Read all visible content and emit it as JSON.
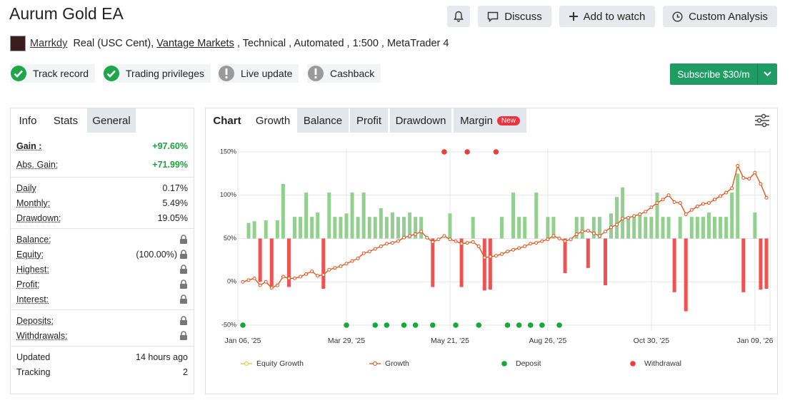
{
  "header": {
    "title": "Aurum Gold EA",
    "buttons": [
      "Discuss",
      "Add to watch",
      "Custom Analysis"
    ],
    "author": "Marrkdy",
    "meta_prefix": "Real (USC Cent),",
    "broker": "Vantage Markets",
    "meta_suffix": ", Technical , Automated , 1:500 , MetaTrader 4",
    "badges": [
      {
        "label": "Track record",
        "status": "ok"
      },
      {
        "label": "Trading privileges",
        "status": "ok"
      },
      {
        "label": "Live update",
        "status": "warn"
      },
      {
        "label": "Cashback",
        "status": "warn"
      }
    ],
    "subscribe": "Subscribe $30/m"
  },
  "stats_panel": {
    "tabs": [
      "Info",
      "Stats",
      "General"
    ],
    "active_tab": 1,
    "groups": [
      [
        {
          "label": "Gain :",
          "value": "+97.60%",
          "positive": true,
          "bold": true
        },
        {
          "label": "Abs. Gain:",
          "value": "+71.99%",
          "positive": true
        }
      ],
      [
        {
          "label": "Daily",
          "value": "0.17%"
        },
        {
          "label": "Monthly:",
          "value": "5.49%"
        },
        {
          "label": "Drawdown:",
          "value": "19.05%"
        }
      ],
      [
        {
          "label": "Balance:",
          "locked": true
        },
        {
          "label": "Equity:",
          "value": "(100.00%)",
          "locked": true
        },
        {
          "label": "Highest:",
          "locked": true
        },
        {
          "label": "Profit:",
          "locked": true
        },
        {
          "label": "Interest:",
          "locked": true
        }
      ],
      [
        {
          "label": "Deposits:",
          "locked": true
        },
        {
          "label": "Withdrawals:",
          "locked": true
        }
      ],
      [
        {
          "label": "Updated",
          "value": "14 hours ago",
          "plain": true
        },
        {
          "label": "Tracking",
          "value": "2",
          "plain": true
        }
      ]
    ]
  },
  "chart_panel": {
    "tabs": [
      "Chart",
      "Growth",
      "Balance",
      "Profit",
      "Drawdown",
      "Margin"
    ],
    "active_tab": 1,
    "new_badge": "New"
  },
  "chart_data": {
    "type": "line",
    "categories": [
      "Jan 06, '25",
      null,
      null,
      null,
      null,
      null,
      null,
      null,
      null,
      null,
      null,
      null,
      null,
      null,
      null,
      null,
      null,
      null,
      "Mar 29, '25",
      null,
      null,
      null,
      null,
      null,
      null,
      null,
      null,
      null,
      null,
      null,
      null,
      null,
      null,
      null,
      null,
      null,
      "May 21, '25",
      null,
      null,
      null,
      null,
      null,
      null,
      null,
      null,
      null,
      null,
      null,
      null,
      null,
      null,
      null,
      null,
      "Aug 26, '25",
      null,
      null,
      null,
      null,
      null,
      null,
      null,
      null,
      null,
      null,
      null,
      null,
      null,
      null,
      null,
      null,
      null,
      "Oct 30, '25",
      null,
      null,
      null,
      null,
      null,
      null,
      null,
      null,
      null,
      null,
      null,
      null,
      null,
      null,
      null,
      null,
      null,
      "Jan 09, '26",
      null,
      null
    ],
    "ylim": [
      -50,
      150
    ],
    "yticks": [
      {
        "value": -50,
        "label": "-50%"
      },
      {
        "value": 0,
        "label": "0%"
      },
      {
        "value": 50,
        "label": "50%"
      },
      {
        "value": 100,
        "label": "100%"
      },
      {
        "value": 150,
        "label": "150%"
      }
    ],
    "y2lim": [
      -10,
      10
    ],
    "grid": true,
    "bars": {
      "axis": "y2",
      "colors": [
        "#93d08f",
        "#ee5253"
      ],
      "values": [
        0,
        1.8,
        2.0,
        -5.0,
        2.1,
        -5.5,
        2.1,
        6.3,
        -5.6,
        2.5,
        2.5,
        5.3,
        2.5,
        3.0,
        -5.8,
        5.3,
        2.5,
        2.5,
        2.9,
        5.3,
        2.5,
        5.3,
        2.5,
        2.5,
        3.5,
        2.5,
        3.0,
        2.5,
        2.5,
        3.0,
        2.5,
        2.5,
        0,
        -5.6,
        0,
        0,
        2.9,
        0,
        -5.6,
        0,
        2.5,
        0,
        -6.0,
        -5.9,
        0,
        2.5,
        0,
        5.3,
        2.5,
        2.5,
        0,
        5.3,
        0,
        2.5,
        2.5,
        0,
        -4.0,
        0,
        2.5,
        2.5,
        -3.4,
        2.5,
        2.5,
        -5.4,
        2.9,
        4.8,
        5.9,
        2.5,
        2.5,
        2.9,
        2.5,
        2.5,
        5.3,
        2.5,
        2.5,
        -6.2,
        2.5,
        -8.4,
        2.5,
        2.5,
        2.5,
        3.0,
        2.5,
        2.5,
        2.5,
        5.3,
        7.5,
        -6.2,
        0,
        3.0,
        -5.9,
        -5.8
      ]
    },
    "series": [
      {
        "name": "Equity Growth",
        "type": "line",
        "color": "#f2c12e",
        "values": [
          0,
          2,
          4,
          -4,
          0,
          -7,
          -4,
          6,
          4,
          4,
          6,
          9,
          12,
          7,
          8,
          14,
          16,
          18,
          21,
          24,
          27,
          33,
          35,
          38,
          41,
          44,
          45,
          47,
          51,
          53,
          55,
          58,
          51,
          46,
          49,
          53,
          49,
          47,
          44,
          45,
          46,
          41,
          28,
          29,
          30,
          32,
          35,
          37,
          39,
          41,
          44,
          45,
          47,
          49,
          53,
          50,
          47,
          49,
          55,
          58,
          59,
          56,
          53,
          58,
          63,
          66,
          73,
          74,
          76,
          78,
          81,
          86,
          91,
          95,
          100,
          92,
          91,
          78,
          83,
          87,
          90,
          91,
          95,
          99,
          103,
          108,
          134,
          120,
          119,
          126,
          113,
          97
        ]
      },
      {
        "name": "Growth",
        "type": "line",
        "color": "#e6521f",
        "values": [
          0,
          2,
          4,
          -4,
          0,
          -7,
          -4,
          6,
          4,
          4,
          6,
          9,
          12,
          7,
          8,
          14,
          16,
          18,
          21,
          24,
          27,
          33,
          35,
          38,
          41,
          44,
          45,
          47,
          51,
          53,
          55,
          58,
          51,
          46,
          49,
          53,
          49,
          47,
          44,
          45,
          46,
          41,
          28,
          29,
          30,
          32,
          35,
          37,
          39,
          41,
          44,
          45,
          47,
          49,
          53,
          50,
          47,
          49,
          55,
          58,
          59,
          56,
          53,
          58,
          63,
          66,
          73,
          74,
          76,
          78,
          81,
          86,
          91,
          95,
          100,
          92,
          91,
          78,
          83,
          87,
          90,
          91,
          95,
          99,
          103,
          108,
          134,
          120,
          119,
          126,
          113,
          97
        ]
      },
      {
        "name": "Deposit",
        "type": "scatter",
        "color": "#16a83a",
        "values": [
          -50,
          null,
          null,
          null,
          null,
          null,
          null,
          null,
          null,
          null,
          null,
          null,
          null,
          null,
          null,
          null,
          null,
          null,
          -50,
          null,
          null,
          null,
          null,
          -50,
          null,
          -50,
          null,
          null,
          -50,
          null,
          -50,
          null,
          null,
          -50,
          null,
          null,
          null,
          -50,
          null,
          null,
          null,
          -50,
          null,
          null,
          null,
          null,
          -50,
          null,
          -50,
          null,
          -50,
          null,
          -50,
          null,
          null,
          -50,
          null,
          null,
          null,
          null,
          null,
          null,
          null,
          null,
          null,
          null,
          null,
          null,
          null,
          null,
          null,
          null,
          null,
          null,
          null,
          null,
          null,
          null,
          null,
          null,
          null,
          null,
          null,
          null,
          null,
          null,
          null,
          null,
          null,
          null,
          null,
          null
        ]
      },
      {
        "name": "Withdrawal",
        "type": "scatter",
        "color": "#e8403b",
        "values": [
          null,
          null,
          null,
          null,
          null,
          null,
          null,
          null,
          null,
          null,
          null,
          null,
          null,
          null,
          null,
          null,
          null,
          null,
          null,
          null,
          null,
          null,
          null,
          null,
          null,
          null,
          null,
          null,
          null,
          null,
          null,
          null,
          null,
          null,
          null,
          150,
          null,
          null,
          null,
          150,
          null,
          null,
          null,
          null,
          150,
          null,
          null,
          null,
          null,
          null,
          null,
          null,
          null,
          null,
          null,
          null,
          null,
          null,
          null,
          null,
          null,
          null,
          null,
          null,
          null,
          null,
          null,
          null,
          null,
          null,
          null,
          null,
          null,
          null,
          null,
          null,
          null,
          null,
          null,
          null,
          null,
          null,
          null,
          null,
          null,
          null,
          null,
          null,
          null,
          null,
          null,
          null
        ]
      }
    ]
  }
}
